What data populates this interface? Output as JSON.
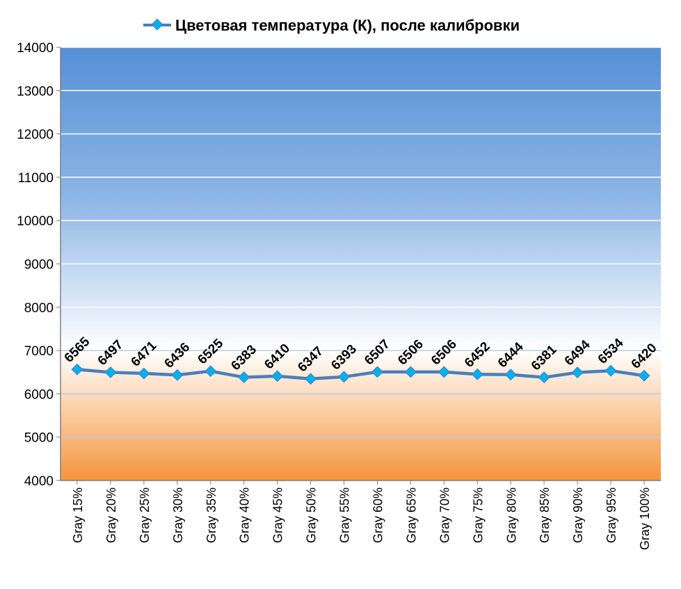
{
  "chart_data": {
    "type": "line",
    "title": "",
    "legend": {
      "entries": [
        "Цветовая температура (К), после калибровки"
      ],
      "placement": "top"
    },
    "categories": [
      "Gray 15%",
      "Gray 20%",
      "Gray 25%",
      "Gray 30%",
      "Gray 35%",
      "Gray 40%",
      "Gray 45%",
      "Gray 50%",
      "Gray 55%",
      "Gray 60%",
      "Gray 65%",
      "Gray 70%",
      "Gray 75%",
      "Gray 80%",
      "Gray 85%",
      "Gray 90%",
      "Gray 95%",
      "Gray 100%"
    ],
    "series": [
      {
        "name": "Цветовая температура (К), после калибровки",
        "values": [
          6565,
          6497,
          6471,
          6436,
          6525,
          6383,
          6410,
          6347,
          6393,
          6507,
          6506,
          6506,
          6452,
          6444,
          6381,
          6494,
          6534,
          6420
        ],
        "color": "#4a7ebb",
        "marker_color": "#00b0f0"
      }
    ],
    "ylim": [
      4000,
      14000
    ],
    "yticks": [
      4000,
      5000,
      6000,
      7000,
      8000,
      9000,
      10000,
      11000,
      12000,
      13000,
      14000
    ],
    "grid": true,
    "background": {
      "top": "#5590d6",
      "middle": "#ffffff",
      "bottom": "#f5943c"
    },
    "xlabel": "",
    "ylabel": ""
  }
}
